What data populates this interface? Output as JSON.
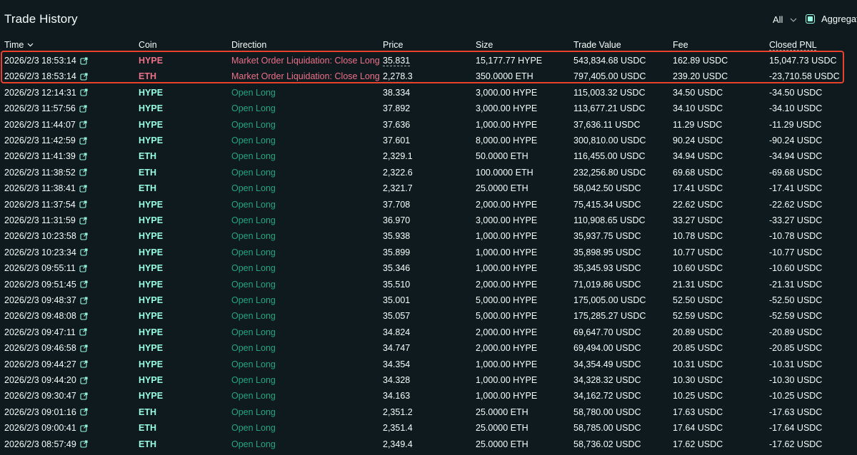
{
  "header": {
    "title": "Trade History",
    "filter_label": "All",
    "aggregate_label": "Aggregate"
  },
  "columns": {
    "time": "Time",
    "coin": "Coin",
    "direction": "Direction",
    "price": "Price",
    "size": "Size",
    "trade_value": "Trade Value",
    "fee": "Fee",
    "closed_pnl": "Closed PNL"
  },
  "colors": {
    "background": "#0f1a1f",
    "accent": "#97fce4",
    "open_long": "#1fa67d",
    "liquidation": "#ed7088",
    "highlight_box": "#e8412e"
  },
  "icons": {
    "time_sort": "chevron-down-icon",
    "row_link": "external-link-icon",
    "filter": "chevron-down-icon",
    "aggregate": "checkbox-checked"
  },
  "rows": [
    {
      "time": "2026/2/3 18:53:14",
      "coin": "HYPE",
      "direction": "Market Order Liquidation: Close Long",
      "price": "35.831",
      "size": "15,177.77 HYPE",
      "value": "543,834.68 USDC",
      "fee": "162.89 USDC",
      "pnl": "15,047.73 USDC",
      "liquidation": true
    },
    {
      "time": "2026/2/3 18:53:14",
      "coin": "ETH",
      "direction": "Market Order Liquidation: Close Long",
      "price": "2,278.3",
      "size": "350.0000 ETH",
      "value": "797,405.00 USDC",
      "fee": "239.20 USDC",
      "pnl": "-23,710.58 USDC",
      "liquidation": true
    },
    {
      "time": "2026/2/3 12:14:31",
      "coin": "HYPE",
      "direction": "Open Long",
      "price": "38.334",
      "size": "3,000.00 HYPE",
      "value": "115,003.32 USDC",
      "fee": "34.50 USDC",
      "pnl": "-34.50 USDC",
      "liquidation": false
    },
    {
      "time": "2026/2/3 11:57:56",
      "coin": "HYPE",
      "direction": "Open Long",
      "price": "37.892",
      "size": "3,000.00 HYPE",
      "value": "113,677.21 USDC",
      "fee": "34.10 USDC",
      "pnl": "-34.10 USDC",
      "liquidation": false
    },
    {
      "time": "2026/2/3 11:44:07",
      "coin": "HYPE",
      "direction": "Open Long",
      "price": "37.636",
      "size": "1,000.00 HYPE",
      "value": "37,636.11 USDC",
      "fee": "11.29 USDC",
      "pnl": "-11.29 USDC",
      "liquidation": false
    },
    {
      "time": "2026/2/3 11:42:59",
      "coin": "HYPE",
      "direction": "Open Long",
      "price": "37.601",
      "size": "8,000.00 HYPE",
      "value": "300,810.00 USDC",
      "fee": "90.24 USDC",
      "pnl": "-90.24 USDC",
      "liquidation": false
    },
    {
      "time": "2026/2/3 11:41:39",
      "coin": "ETH",
      "direction": "Open Long",
      "price": "2,329.1",
      "size": "50.0000 ETH",
      "value": "116,455.00 USDC",
      "fee": "34.94 USDC",
      "pnl": "-34.94 USDC",
      "liquidation": false
    },
    {
      "time": "2026/2/3 11:38:52",
      "coin": "ETH",
      "direction": "Open Long",
      "price": "2,322.6",
      "size": "100.0000 ETH",
      "value": "232,256.80 USDC",
      "fee": "69.68 USDC",
      "pnl": "-69.68 USDC",
      "liquidation": false
    },
    {
      "time": "2026/2/3 11:38:41",
      "coin": "ETH",
      "direction": "Open Long",
      "price": "2,321.7",
      "size": "25.0000 ETH",
      "value": "58,042.50 USDC",
      "fee": "17.41 USDC",
      "pnl": "-17.41 USDC",
      "liquidation": false
    },
    {
      "time": "2026/2/3 11:37:54",
      "coin": "HYPE",
      "direction": "Open Long",
      "price": "37.708",
      "size": "2,000.00 HYPE",
      "value": "75,415.34 USDC",
      "fee": "22.62 USDC",
      "pnl": "-22.62 USDC",
      "liquidation": false
    },
    {
      "time": "2026/2/3 11:31:59",
      "coin": "HYPE",
      "direction": "Open Long",
      "price": "36.970",
      "size": "3,000.00 HYPE",
      "value": "110,908.65 USDC",
      "fee": "33.27 USDC",
      "pnl": "-33.27 USDC",
      "liquidation": false
    },
    {
      "time": "2026/2/3 10:23:58",
      "coin": "HYPE",
      "direction": "Open Long",
      "price": "35.938",
      "size": "1,000.00 HYPE",
      "value": "35,937.75 USDC",
      "fee": "10.78 USDC",
      "pnl": "-10.78 USDC",
      "liquidation": false
    },
    {
      "time": "2026/2/3 10:23:34",
      "coin": "HYPE",
      "direction": "Open Long",
      "price": "35.899",
      "size": "1,000.00 HYPE",
      "value": "35,898.95 USDC",
      "fee": "10.77 USDC",
      "pnl": "-10.77 USDC",
      "liquidation": false
    },
    {
      "time": "2026/2/3 09:55:11",
      "coin": "HYPE",
      "direction": "Open Long",
      "price": "35.346",
      "size": "1,000.00 HYPE",
      "value": "35,345.93 USDC",
      "fee": "10.60 USDC",
      "pnl": "-10.60 USDC",
      "liquidation": false
    },
    {
      "time": "2026/2/3 09:51:45",
      "coin": "HYPE",
      "direction": "Open Long",
      "price": "35.510",
      "size": "2,000.00 HYPE",
      "value": "71,019.86 USDC",
      "fee": "21.31 USDC",
      "pnl": "-21.31 USDC",
      "liquidation": false
    },
    {
      "time": "2026/2/3 09:48:37",
      "coin": "HYPE",
      "direction": "Open Long",
      "price": "35.001",
      "size": "5,000.00 HYPE",
      "value": "175,005.00 USDC",
      "fee": "52.50 USDC",
      "pnl": "-52.50 USDC",
      "liquidation": false
    },
    {
      "time": "2026/2/3 09:48:08",
      "coin": "HYPE",
      "direction": "Open Long",
      "price": "35.057",
      "size": "5,000.00 HYPE",
      "value": "175,285.27 USDC",
      "fee": "52.59 USDC",
      "pnl": "-52.59 USDC",
      "liquidation": false
    },
    {
      "time": "2026/2/3 09:47:11",
      "coin": "HYPE",
      "direction": "Open Long",
      "price": "34.824",
      "size": "2,000.00 HYPE",
      "value": "69,647.70 USDC",
      "fee": "20.89 USDC",
      "pnl": "-20.89 USDC",
      "liquidation": false
    },
    {
      "time": "2026/2/3 09:46:58",
      "coin": "HYPE",
      "direction": "Open Long",
      "price": "34.747",
      "size": "2,000.00 HYPE",
      "value": "69,494.00 USDC",
      "fee": "20.85 USDC",
      "pnl": "-20.85 USDC",
      "liquidation": false
    },
    {
      "time": "2026/2/3 09:44:27",
      "coin": "HYPE",
      "direction": "Open Long",
      "price": "34.354",
      "size": "1,000.00 HYPE",
      "value": "34,354.49 USDC",
      "fee": "10.31 USDC",
      "pnl": "-10.31 USDC",
      "liquidation": false
    },
    {
      "time": "2026/2/3 09:44:20",
      "coin": "HYPE",
      "direction": "Open Long",
      "price": "34.328",
      "size": "1,000.00 HYPE",
      "value": "34,328.32 USDC",
      "fee": "10.30 USDC",
      "pnl": "-10.30 USDC",
      "liquidation": false
    },
    {
      "time": "2026/2/3 09:30:47",
      "coin": "HYPE",
      "direction": "Open Long",
      "price": "34.163",
      "size": "1,000.00 HYPE",
      "value": "34,162.72 USDC",
      "fee": "10.25 USDC",
      "pnl": "-10.25 USDC",
      "liquidation": false
    },
    {
      "time": "2026/2/3 09:01:16",
      "coin": "ETH",
      "direction": "Open Long",
      "price": "2,351.2",
      "size": "25.0000 ETH",
      "value": "58,780.00 USDC",
      "fee": "17.63 USDC",
      "pnl": "-17.63 USDC",
      "liquidation": false
    },
    {
      "time": "2026/2/3 09:00:41",
      "coin": "ETH",
      "direction": "Open Long",
      "price": "2,351.4",
      "size": "25.0000 ETH",
      "value": "58,785.00 USDC",
      "fee": "17.64 USDC",
      "pnl": "-17.64 USDC",
      "liquidation": false
    },
    {
      "time": "2026/2/3 08:57:49",
      "coin": "ETH",
      "direction": "Open Long",
      "price": "2,349.4",
      "size": "25.0000 ETH",
      "value": "58,736.02 USDC",
      "fee": "17.62 USDC",
      "pnl": "-17.62 USDC",
      "liquidation": false
    }
  ]
}
